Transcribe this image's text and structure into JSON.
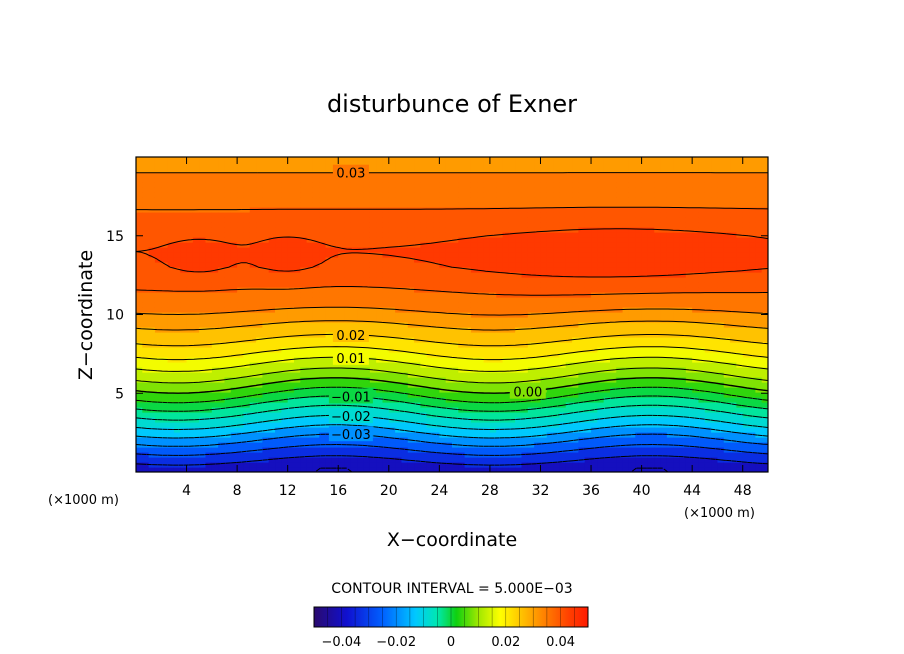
{
  "chart_data": {
    "type": "heatmap",
    "title": "disturbunce of Exner",
    "xlabel": "X−coordinate",
    "ylabel": "Z−coordinate",
    "x_unit": "(×1000 m)",
    "z_unit": "(×1000 m)",
    "xlim": [
      0,
      50
    ],
    "ylim": [
      0,
      20
    ],
    "x_ticks": [
      "4",
      "8",
      "12",
      "16",
      "20",
      "24",
      "28",
      "32",
      "36",
      "40",
      "44",
      "48"
    ],
    "y_ticks": [
      "5",
      "10",
      "15"
    ],
    "contour_interval_text": "CONTOUR INTERVAL = 5.000E−03",
    "contour_interval": 0.005,
    "contour_labels": [
      "0.03",
      "0.02",
      "0.01",
      "0.00",
      "−0.01",
      "−0.02",
      "−0.03"
    ],
    "colorbar": {
      "range": [
        -0.05,
        0.05
      ],
      "ticks": [
        "−0.04",
        "−0.02",
        "0",
        "0.02",
        "0.04"
      ]
    },
    "colormap": [
      "#2a0a6e",
      "#1010d0",
      "#0060ff",
      "#00c8ff",
      "#00e8b0",
      "#10d010",
      "#a0e800",
      "#ffff00",
      "#ffc000",
      "#ff7a00",
      "#ff4000",
      "#ff1a00"
    ],
    "field_description_values": {
      "z": [
        0,
        1,
        2,
        3,
        4,
        5,
        6,
        7,
        8,
        9,
        10,
        11,
        12,
        13,
        14,
        15,
        16,
        17,
        18,
        19,
        20
      ],
      "value_at_x25": [
        -0.045,
        -0.038,
        -0.03,
        -0.021,
        -0.013,
        -0.004,
        0.004,
        0.011,
        0.018,
        0.023,
        0.029,
        0.033,
        0.036,
        0.039,
        0.04,
        0.039,
        0.037,
        0.034,
        0.032,
        0.03,
        0.029
      ]
    }
  }
}
